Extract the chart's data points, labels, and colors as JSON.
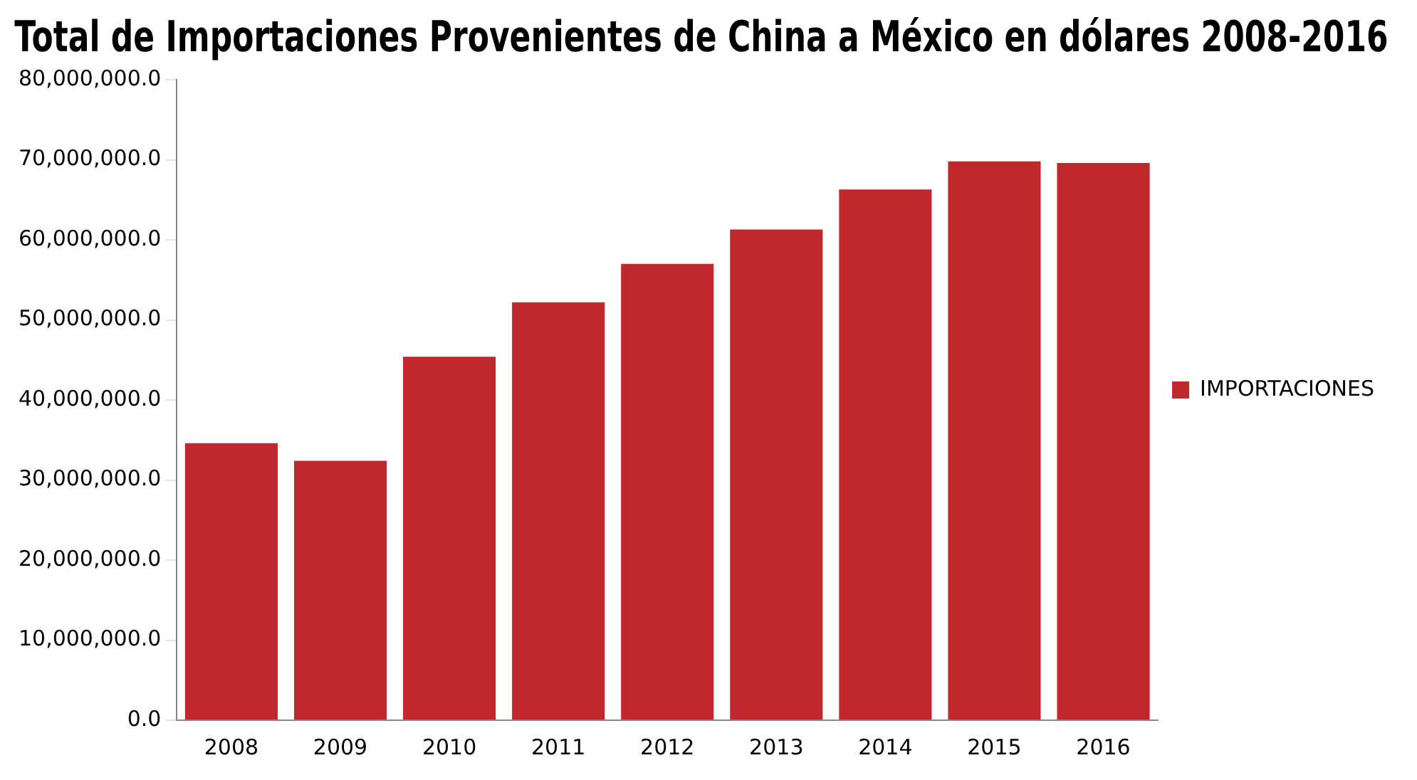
{
  "chart_data": {
    "type": "bar",
    "title": "Total de Importaciones Provenientes de China a México en dólares 2008-2016",
    "categories": [
      "2008",
      "2009",
      "2010",
      "2011",
      "2012",
      "2013",
      "2014",
      "2015",
      "2016"
    ],
    "series": [
      {
        "name": "IMPORTACIONES",
        "color": "#c0282d",
        "values": [
          34600000,
          32400000,
          45400000,
          52200000,
          57000000,
          61300000,
          66300000,
          69800000,
          69600000
        ]
      }
    ],
    "ylim": [
      0,
      80000000
    ],
    "yticks": [
      {
        "value": 0,
        "label": "0.0"
      },
      {
        "value": 10000000,
        "label": "10,000,000.0"
      },
      {
        "value": 20000000,
        "label": "20,000,000.0"
      },
      {
        "value": 30000000,
        "label": "30,000,000.0"
      },
      {
        "value": 40000000,
        "label": "40,000,000.0"
      },
      {
        "value": 50000000,
        "label": "50,000,000.0"
      },
      {
        "value": 60000000,
        "label": "60,000,000.0"
      },
      {
        "value": 70000000,
        "label": "70,000,000.0"
      },
      {
        "value": 80000000,
        "label": "80,000,000.0"
      }
    ],
    "grid": false,
    "legend": "right"
  }
}
